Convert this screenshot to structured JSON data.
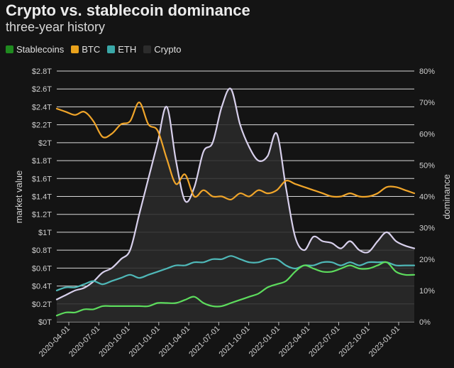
{
  "chart_data": {
    "type": "line",
    "title": "Crypto vs. stablecoin dominance",
    "subtitle": "three-year history",
    "ylabel": "market value",
    "y2label": "dominance",
    "ylim": [
      0,
      2.8
    ],
    "y2lim": [
      0,
      80
    ],
    "y_ticks": [
      "$0T",
      "$0.2T",
      "$0.4T",
      "$0.6T",
      "$0.8T",
      "$1T",
      "$1.2T",
      "$1.4T",
      "$1.6T",
      "$1.8T",
      "$2T",
      "$2.2T",
      "$2.4T",
      "$2.6T",
      "$2.8T"
    ],
    "y2_ticks": [
      "0%",
      "10%",
      "20%",
      "30%",
      "40%",
      "50%",
      "60%",
      "70%",
      "80%"
    ],
    "x_ticks": [
      "2020-04-01",
      "2020-07-01",
      "2020-10-01",
      "2021-01-01",
      "2021-04-01",
      "2021-07-01",
      "2021-10-01",
      "2022-01-01",
      "2022-04-01",
      "2022-07-01",
      "2022-10-01",
      "2023-01-01"
    ],
    "x_range": [
      0,
      39
    ],
    "grid": "horizontal",
    "legend_position": "top-left",
    "series": [
      {
        "name": "Crypto",
        "axis": "left",
        "color": "#d8d0ec",
        "fill": true,
        "x": [
          0,
          1,
          2,
          3,
          4,
          5,
          6,
          7,
          8,
          9,
          10,
          11,
          12,
          13,
          14,
          15,
          16,
          17,
          18,
          19,
          20,
          21,
          22,
          23,
          24,
          25,
          26,
          27,
          28,
          29,
          30,
          31,
          32,
          33,
          34,
          35,
          36,
          37,
          38,
          39
        ],
        "values": [
          0.25,
          0.3,
          0.35,
          0.38,
          0.45,
          0.55,
          0.6,
          0.7,
          0.8,
          1.2,
          1.6,
          2.0,
          2.4,
          1.8,
          1.35,
          1.5,
          1.9,
          2.0,
          2.4,
          2.6,
          2.2,
          1.95,
          1.8,
          1.85,
          2.1,
          1.5,
          0.95,
          0.8,
          0.95,
          0.9,
          0.88,
          0.82,
          0.9,
          0.8,
          0.78,
          0.9,
          1.0,
          0.9,
          0.85,
          0.82
        ]
      },
      {
        "name": "BTC",
        "axis": "right",
        "color": "#f0a52a",
        "x": [
          0,
          1,
          2,
          3,
          4,
          5,
          6,
          7,
          8,
          9,
          10,
          11,
          12,
          13,
          14,
          15,
          16,
          17,
          18,
          19,
          20,
          21,
          22,
          23,
          24,
          25,
          26,
          27,
          28,
          29,
          30,
          31,
          32,
          33,
          34,
          35,
          36,
          37,
          38,
          39
        ],
        "values": [
          68,
          67,
          66,
          67,
          64,
          59,
          60,
          63,
          64,
          70,
          63,
          61,
          52,
          44,
          47,
          40,
          42,
          40,
          40,
          39,
          41,
          40,
          42,
          41,
          42,
          45,
          44,
          43,
          42,
          41,
          40,
          40,
          41,
          40,
          40,
          41,
          43,
          43,
          42,
          41
        ]
      },
      {
        "name": "ETH",
        "axis": "right",
        "color": "#4fb8b8",
        "x": [
          0,
          1,
          2,
          3,
          4,
          5,
          6,
          7,
          8,
          9,
          10,
          11,
          12,
          13,
          14,
          15,
          16,
          17,
          18,
          19,
          20,
          21,
          22,
          23,
          24,
          25,
          26,
          27,
          28,
          29,
          30,
          31,
          32,
          33,
          34,
          35,
          36,
          37,
          38,
          39
        ],
        "values": [
          10,
          11,
          11,
          12,
          13,
          12,
          13,
          14,
          15,
          14,
          15,
          16,
          17,
          18,
          18,
          19,
          19,
          20,
          20,
          21,
          20,
          19,
          19,
          20,
          20,
          18,
          17,
          18,
          18,
          19,
          19,
          18,
          19,
          18,
          19,
          19,
          19,
          18,
          18,
          18
        ]
      },
      {
        "name": "Stablecoins",
        "axis": "right",
        "color": "#5ddc5d",
        "x": [
          0,
          1,
          2,
          3,
          4,
          5,
          6,
          7,
          8,
          9,
          10,
          11,
          12,
          13,
          14,
          15,
          16,
          17,
          18,
          19,
          20,
          21,
          22,
          23,
          24,
          25,
          26,
          27,
          28,
          29,
          30,
          31,
          32,
          33,
          34,
          35,
          36,
          37,
          38,
          39
        ],
        "values": [
          2,
          3,
          3,
          4,
          4,
          5,
          5,
          5,
          5,
          5,
          5,
          6,
          6,
          6,
          7,
          8,
          6,
          5,
          5,
          6,
          7,
          8,
          9,
          11,
          12,
          13,
          16,
          18,
          17,
          16,
          16,
          17,
          18,
          17,
          17,
          18,
          19,
          16,
          15,
          15
        ]
      }
    ]
  }
}
